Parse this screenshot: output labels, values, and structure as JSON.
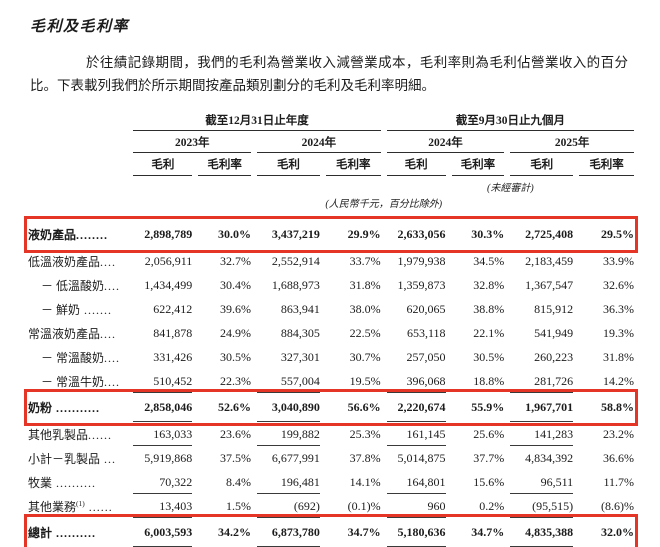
{
  "page": {
    "title": "毛利及毛利率",
    "paragraph": "於往績記錄期間，我們的毛利為營業收入減營業成本，毛利率則為毛利佔營業收入的百分比。下表載列我們於所示期間按產品類別劃分的毛利及毛利率明細。"
  },
  "colors": {
    "highlight_box": "#e53527",
    "text": "#1c1c1c",
    "rule": "#2d2d2d"
  },
  "table": {
    "section_headers": {
      "annual": "截至12月31日止年度",
      "nine_month": "截至9月30日止九個月"
    },
    "year_headers": {
      "fy2023": "2023年",
      "fy2024": "2024年",
      "nm2024": "2024年",
      "nm2025": "2025年"
    },
    "sub_headers": {
      "gross_profit": "毛利",
      "gross_margin": "毛利率"
    },
    "unaudited_note": "(未經審計)",
    "units_note": "(人民幣千元，百分比除外)",
    "rows": [
      {
        "label": "液奶產品",
        "dots": "........",
        "bold": true,
        "highlighted": true,
        "values": [
          "2,898,789",
          "30.0%",
          "3,437,219",
          "29.9%",
          "2,633,056",
          "30.3%",
          "2,725,408",
          "29.5%"
        ]
      },
      {
        "label": "低溫液奶產品",
        "dots": "....",
        "values": [
          "2,056,911",
          "32.7%",
          "2,552,914",
          "33.7%",
          "1,979,938",
          "34.5%",
          "2,183,459",
          "33.9%"
        ]
      },
      {
        "label": "－ 低溫酸奶",
        "dots": "....",
        "indent": true,
        "values": [
          "1,434,499",
          "30.4%",
          "1,688,973",
          "31.8%",
          "1,359,873",
          "32.8%",
          "1,367,547",
          "32.6%"
        ]
      },
      {
        "label": "－ 鮮奶",
        "dots": " .......",
        "indent": true,
        "values": [
          "622,412",
          "39.6%",
          "863,941",
          "38.0%",
          "620,065",
          "38.8%",
          "815,912",
          "36.3%"
        ]
      },
      {
        "label": "常溫液奶產品",
        "dots": "....",
        "values": [
          "841,878",
          "24.9%",
          "884,305",
          "22.5%",
          "653,118",
          "22.1%",
          "541,949",
          "19.3%"
        ]
      },
      {
        "label": "－ 常溫酸奶",
        "dots": "....",
        "indent": true,
        "values": [
          "331,426",
          "30.5%",
          "327,301",
          "30.7%",
          "257,050",
          "30.5%",
          "260,223",
          "31.8%"
        ]
      },
      {
        "label": "－ 常溫牛奶",
        "dots": "....",
        "indent": true,
        "underline": true,
        "values": [
          "510,452",
          "22.3%",
          "557,004",
          "19.5%",
          "396,068",
          "18.8%",
          "281,726",
          "14.2%"
        ]
      },
      {
        "label": "奶粉",
        "dots": " ...........",
        "bold": true,
        "highlighted": true,
        "underline": true,
        "values": [
          "2,858,046",
          "52.6%",
          "3,040,890",
          "56.6%",
          "2,220,674",
          "55.9%",
          "1,967,701",
          "58.8%"
        ]
      },
      {
        "label": "其他乳製品",
        "dots": "......",
        "underline": true,
        "values": [
          "163,033",
          "23.6%",
          "199,882",
          "25.3%",
          "161,145",
          "25.6%",
          "141,283",
          "23.2%"
        ]
      },
      {
        "label": "小計－乳製品",
        "dots": " ...",
        "values": [
          "5,919,868",
          "37.5%",
          "6,677,991",
          "37.8%",
          "5,014,875",
          "37.7%",
          "4,834,392",
          "36.6%"
        ]
      },
      {
        "label": "牧業",
        "dots": " ..........",
        "underline": true,
        "values": [
          "70,322",
          "8.4%",
          "196,481",
          "14.1%",
          "164,801",
          "15.6%",
          "96,511",
          "11.7%"
        ]
      },
      {
        "label": "其他業務",
        "sup": "(1)",
        "dots": " ......",
        "underline": true,
        "values": [
          "13,403",
          "1.5%",
          "(692)",
          "(0.1)%",
          "960",
          "0.2%",
          "(95,515)",
          "(8.6)%"
        ]
      },
      {
        "label": "總計",
        "dots": " ..........",
        "bold": true,
        "highlighted": true,
        "underline": true,
        "values": [
          "6,003,593",
          "34.2%",
          "6,873,780",
          "34.7%",
          "5,180,636",
          "34.7%",
          "4,835,388",
          "32.0%"
        ]
      }
    ]
  }
}
